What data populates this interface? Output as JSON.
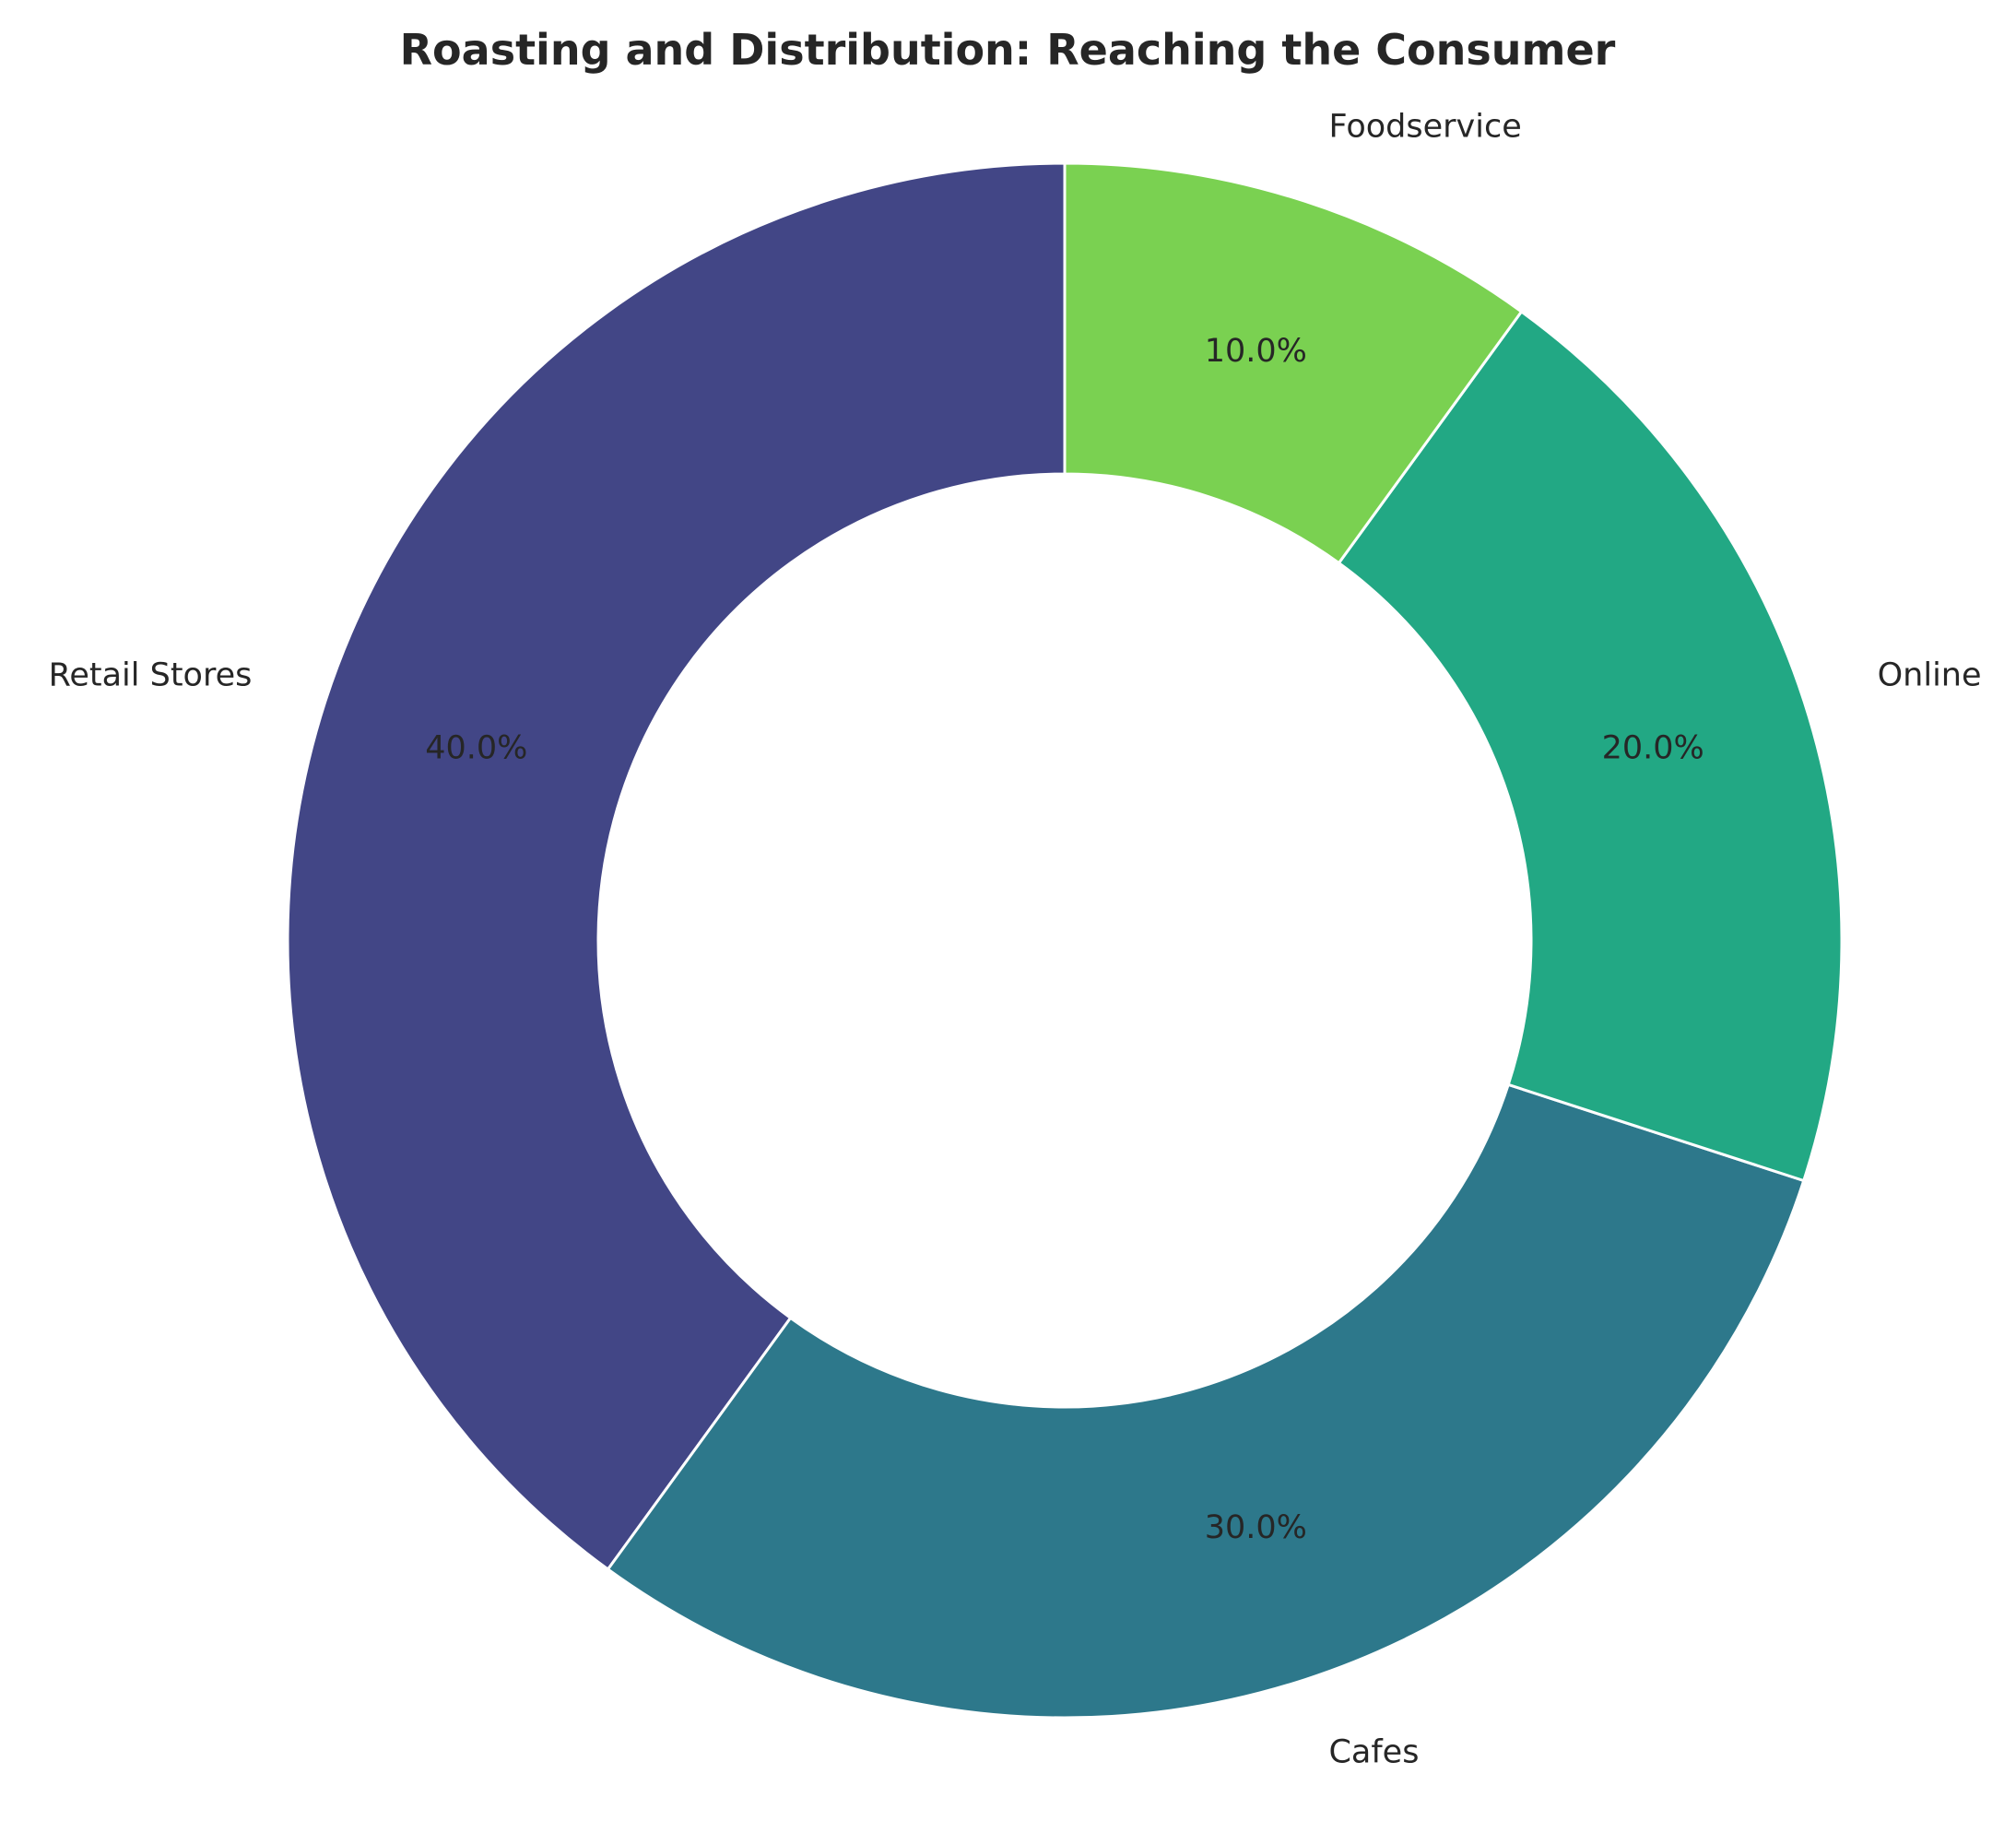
{
  "chart_data": {
    "type": "pie",
    "title": "Roasting and Distribution: Reaching the Consumer",
    "categories": [
      "Retail Stores",
      "Cafes",
      "Online",
      "Foodservice"
    ],
    "values": [
      40,
      30,
      20,
      10
    ],
    "percent_labels": [
      "40.0%",
      "30.0%",
      "20.0%",
      "10.0%"
    ],
    "colors": [
      "#424686",
      "#2d788b",
      "#22a884",
      "#7ad151"
    ],
    "start_angle_degrees": 90,
    "direction": "counterclockwise",
    "donut": true,
    "legend": "none"
  }
}
